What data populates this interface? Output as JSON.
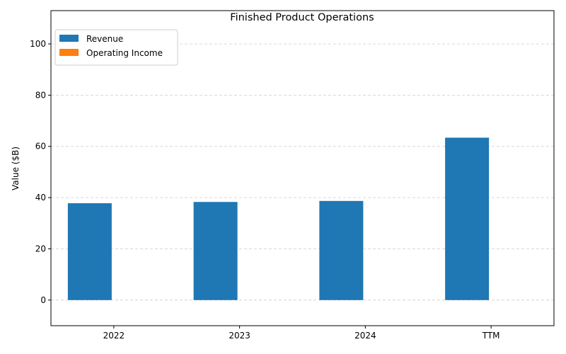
{
  "chart_data": {
    "type": "bar",
    "title": "Finished Product Operations",
    "xlabel": "",
    "ylabel": "Value ($B)",
    "categories": [
      "2022",
      "2023",
      "2024",
      "TTM"
    ],
    "series": [
      {
        "name": "Revenue",
        "values": [
          37.8,
          38.3,
          38.7,
          63.4
        ]
      },
      {
        "name": "Operating Income",
        "values": [
          0,
          0,
          0,
          0
        ]
      }
    ],
    "ylim": [
      -10,
      113
    ],
    "yticks": [
      0,
      20,
      40,
      60,
      80,
      100
    ],
    "grid": true,
    "legend_position": "top-left",
    "colors": {
      "Revenue": "#1f77b4",
      "Operating Income": "#ff7f0e"
    }
  }
}
